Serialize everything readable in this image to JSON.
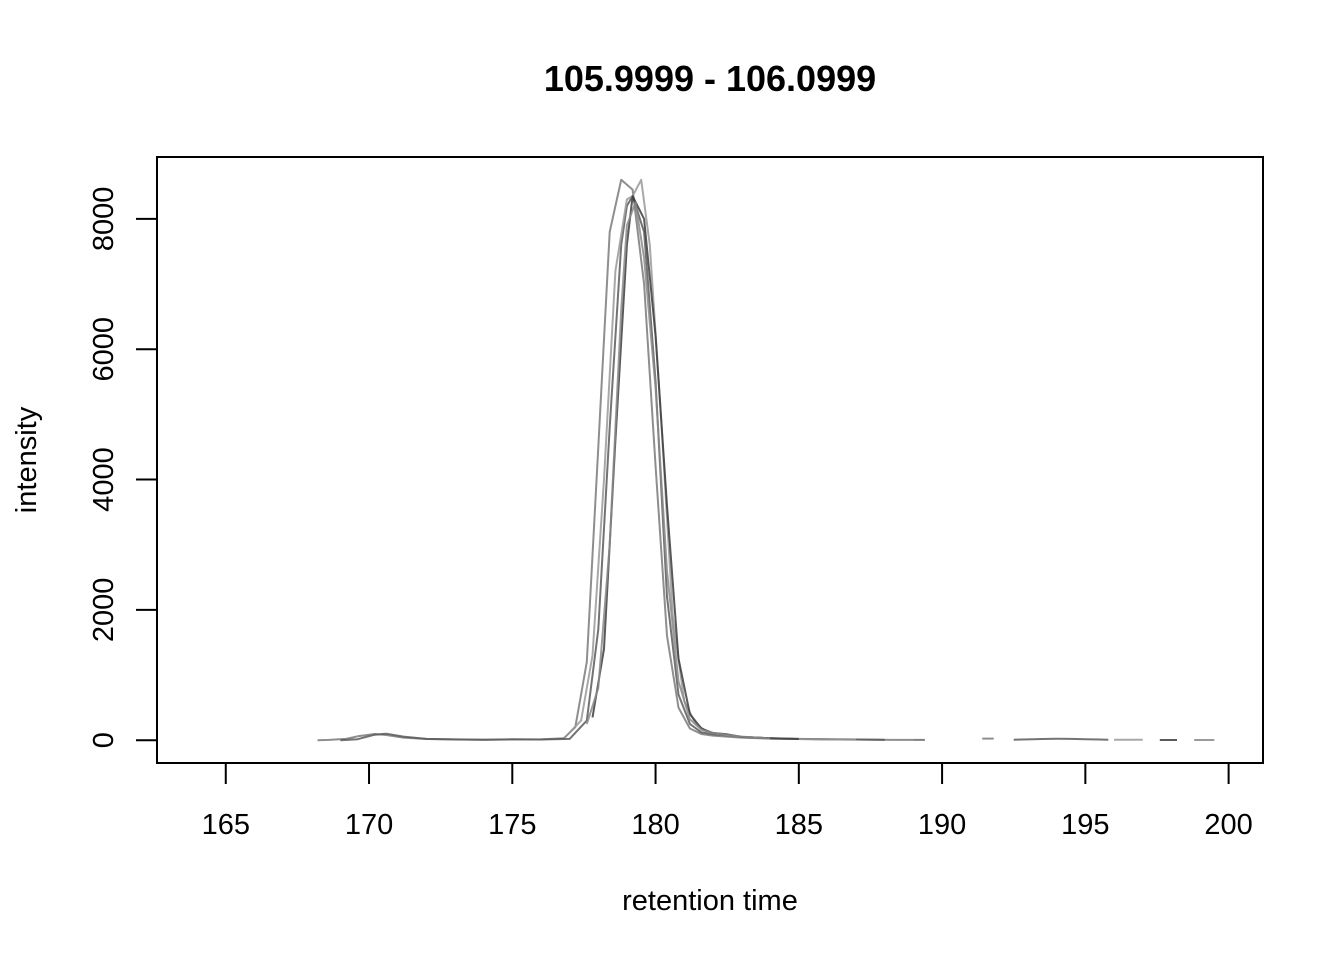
{
  "chart_data": {
    "type": "line",
    "title": "105.9999 - 106.0999",
    "xlabel": "retention time",
    "ylabel": "intensity",
    "xlim": [
      162.6,
      201.2
    ],
    "ylim": [
      -350,
      8950
    ],
    "x_ticks": [
      165,
      170,
      175,
      180,
      185,
      190,
      195,
      200
    ],
    "y_ticks": [
      0,
      2000,
      4000,
      6000,
      8000
    ],
    "grid": false,
    "legend": "none",
    "line_colors": [
      "#7a7a7a",
      "#5a5a5a",
      "#999999",
      "#3c3c3c",
      "#8a8a8a",
      "#6a6a6a"
    ],
    "series": [
      {
        "x": [
          168.2,
          168.6,
          169.2,
          169.6,
          170.2,
          170.6,
          171.2,
          172.0,
          173.0,
          174.0,
          175.0,
          176.0,
          176.8,
          177.2,
          177.6,
          178.0,
          178.4,
          178.8,
          179.2,
          179.6,
          180.0,
          180.4,
          180.8,
          181.2,
          181.6,
          182.0,
          183.0,
          184.0,
          185.0,
          186.0,
          187.0,
          188.0,
          189.0
        ],
        "y": [
          0,
          5,
          20,
          60,
          95,
          80,
          40,
          18,
          10,
          8,
          10,
          12,
          30,
          200,
          1200,
          4500,
          7800,
          8600,
          8450,
          7000,
          4200,
          1600,
          500,
          180,
          95,
          70,
          40,
          25,
          18,
          12,
          10,
          6,
          4
        ]
      },
      {
        "x": [
          169.0,
          169.6,
          170.2,
          170.6,
          171.2,
          172.0,
          173.0,
          174.0,
          175.0,
          176.0,
          177.0,
          177.6,
          178.0,
          178.4,
          178.8,
          179.0,
          179.2,
          179.6,
          180.0,
          180.4,
          180.8,
          181.2,
          181.6,
          182.0,
          183.0,
          184.0,
          185.0,
          186.0,
          187.0,
          188.0
        ],
        "y": [
          0,
          15,
          85,
          100,
          55,
          20,
          12,
          8,
          14,
          10,
          20,
          300,
          1700,
          4800,
          7600,
          8200,
          8350,
          7800,
          5500,
          2200,
          700,
          250,
          120,
          90,
          50,
          30,
          20,
          14,
          10,
          5
        ]
      },
      {
        "x": [
          177.0,
          177.4,
          177.8,
          178.2,
          178.6,
          179.0,
          179.2,
          179.5,
          179.8,
          180.2,
          180.6,
          181.0,
          181.4,
          181.8,
          182.2,
          183.0,
          184.0,
          185.0,
          186.0,
          187.0
        ],
        "y": [
          120,
          300,
          1300,
          4000,
          7200,
          8300,
          8350,
          8600,
          7600,
          4900,
          1900,
          600,
          250,
          130,
          95,
          50,
          25,
          18,
          12,
          8
        ]
      },
      {
        "x": [
          177.8,
          178.2,
          178.6,
          179.0,
          179.2,
          179.6,
          180.0,
          180.4,
          180.8,
          181.2,
          181.6,
          182.0,
          182.5,
          183.0,
          184.0,
          185.0
        ],
        "y": [
          350,
          1400,
          4600,
          7600,
          8350,
          8000,
          6200,
          3600,
          1250,
          400,
          180,
          110,
          90,
          50,
          30,
          18
        ]
      },
      {
        "x": [
          177.6,
          178.0,
          178.4,
          178.8,
          179.0,
          179.3,
          179.6,
          180.0,
          180.4,
          180.8,
          181.2,
          181.6,
          182.0,
          183.0,
          184.0
        ],
        "y": [
          250,
          800,
          3000,
          6600,
          7900,
          8250,
          7400,
          5400,
          2600,
          900,
          320,
          160,
          110,
          55,
          28
        ]
      },
      {
        "x": [
          189.0,
          189.4
        ],
        "y": [
          4,
          4
        ]
      },
      {
        "x": [
          191.4,
          191.8
        ],
        "y": [
          25,
          25
        ]
      },
      {
        "x": [
          192.5,
          193.0,
          193.5,
          194.0,
          194.5,
          195.0,
          195.5,
          195.8
        ],
        "y": [
          8,
          12,
          18,
          22,
          20,
          14,
          10,
          6
        ]
      },
      {
        "x": [
          196.0,
          197.0
        ],
        "y": [
          6,
          6
        ]
      },
      {
        "x": [
          197.6,
          198.2
        ],
        "y": [
          3,
          3
        ]
      },
      {
        "x": [
          198.8,
          199.5
        ],
        "y": [
          3,
          3
        ]
      }
    ]
  }
}
